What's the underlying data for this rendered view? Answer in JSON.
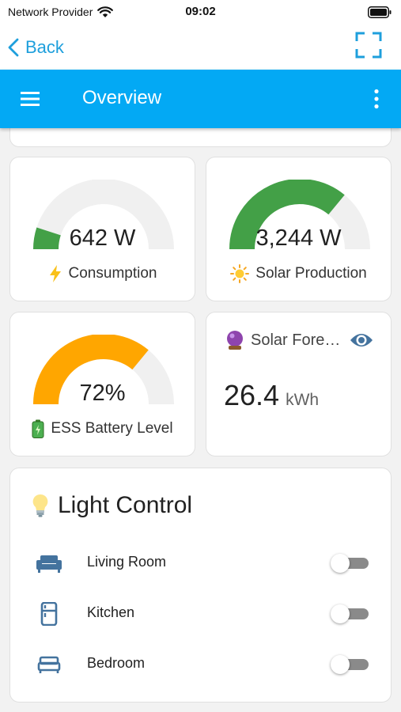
{
  "status_bar": {
    "carrier": "Network Provider",
    "time": "09:02"
  },
  "nav": {
    "back_label": "Back"
  },
  "header": {
    "title": "Overview"
  },
  "gauges": [
    {
      "name": "consumption",
      "value": "642 W",
      "label": "Consumption",
      "icon": "lightning-icon",
      "fraction": 0.1,
      "color": "#43a047"
    },
    {
      "name": "solar-production",
      "value": "3,244 W",
      "label": "Solar Production",
      "icon": "sun-icon",
      "fraction": 0.72,
      "color": "#43a047"
    },
    {
      "name": "ess-battery-level",
      "value": "72%",
      "label": "ESS Battery Level",
      "icon": "battery-icon",
      "fraction": 0.72,
      "color": "#ffa600"
    }
  ],
  "forecast": {
    "title": "Solar Fore…",
    "icon": "crystal-ball-icon",
    "value": "26.4",
    "unit": "kWh"
  },
  "light_control": {
    "title": "Light Control",
    "icon": "light-bulb-icon",
    "rooms": [
      {
        "name": "Living Room",
        "icon": "sofa-icon",
        "on": false
      },
      {
        "name": "Kitchen",
        "icon": "fridge-icon",
        "on": false
      },
      {
        "name": "Bedroom",
        "icon": "bed-icon",
        "on": false
      }
    ]
  },
  "colors": {
    "accent": "#03a9f4",
    "link": "#1e9fdc",
    "gauge_green": "#43a047",
    "gauge_orange": "#ffa600",
    "gauge_track": "#f0f0f0",
    "icon_blue": "#44739e"
  }
}
